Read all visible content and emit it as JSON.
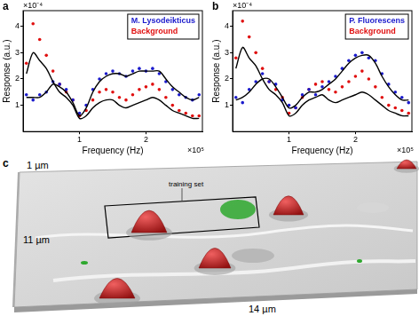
{
  "chart_data": [
    {
      "type": "scatter",
      "panel_label": "a",
      "x_label": "Frequency (Hz)",
      "y_label": "Response (a.u.)",
      "x_multiplier": "×10⁵",
      "y_multiplier": "×10⁻⁴",
      "x": [
        0.2,
        0.3,
        0.4,
        0.5,
        0.6,
        0.7,
        0.8,
        0.9,
        1.0,
        1.1,
        1.2,
        1.3,
        1.4,
        1.5,
        1.6,
        1.7,
        1.8,
        1.9,
        2.0,
        2.1,
        2.2,
        2.3,
        2.4,
        2.5,
        2.6,
        2.7,
        2.8
      ],
      "xlim": [
        0.15,
        2.85
      ],
      "xticks": [
        1,
        2
      ],
      "ylim": [
        0,
        4.6
      ],
      "yticks": [
        1,
        2,
        3,
        4
      ],
      "grid": false,
      "legend": "upper right",
      "series": [
        {
          "name": "M. Lysodeikticus",
          "color": "#1a1acc",
          "marker": "dot",
          "values": [
            1.4,
            1.2,
            1.4,
            1.5,
            1.9,
            1.8,
            1.6,
            1.2,
            0.7,
            1.0,
            1.6,
            2.0,
            2.2,
            2.3,
            2.2,
            2.1,
            2.3,
            2.4,
            2.3,
            2.4,
            2.2,
            1.9,
            1.6,
            1.4,
            1.3,
            1.2,
            1.4
          ]
        },
        {
          "name": "Background",
          "color": "#e01010",
          "marker": "dot",
          "values": [
            2.6,
            4.1,
            3.5,
            2.9,
            2.3,
            1.8,
            1.5,
            1.2,
            0.6,
            0.8,
            1.2,
            1.5,
            1.6,
            1.5,
            1.3,
            1.2,
            1.4,
            1.6,
            1.7,
            1.8,
            1.6,
            1.3,
            1.0,
            0.8,
            0.7,
            0.6,
            0.6
          ]
        },
        {
          "type": "line",
          "color": "#000000",
          "line_style": "solid",
          "values": [
            1.3,
            1.3,
            1.3,
            1.5,
            1.8,
            1.7,
            1.5,
            1.1,
            0.6,
            0.9,
            1.5,
            1.9,
            2.1,
            2.2,
            2.2,
            2.1,
            2.2,
            2.3,
            2.3,
            2.3,
            2.3,
            2.0,
            1.7,
            1.5,
            1.3,
            1.2,
            1.3
          ]
        },
        {
          "type": "line",
          "color": "#000000",
          "line_style": "solid",
          "values": [
            2.2,
            3.0,
            2.7,
            2.4,
            1.9,
            1.5,
            1.3,
            1.0,
            0.5,
            0.6,
            0.9,
            1.1,
            1.2,
            1.2,
            1.0,
            0.9,
            1.0,
            1.1,
            1.2,
            1.3,
            1.2,
            1.0,
            0.8,
            0.7,
            0.6,
            0.5,
            0.5
          ]
        }
      ]
    },
    {
      "type": "scatter",
      "panel_label": "b",
      "x_label": "Frequency (Hz)",
      "y_label": "Response (a.u.)",
      "x_multiplier": "×10⁵",
      "y_multiplier": "×10⁻⁴",
      "x": [
        0.2,
        0.3,
        0.4,
        0.5,
        0.6,
        0.7,
        0.8,
        0.9,
        1.0,
        1.1,
        1.2,
        1.3,
        1.4,
        1.5,
        1.6,
        1.7,
        1.8,
        1.9,
        2.0,
        2.1,
        2.2,
        2.3,
        2.4,
        2.5,
        2.6,
        2.7,
        2.8
      ],
      "xlim": [
        0.15,
        2.85
      ],
      "xticks": [
        1,
        2
      ],
      "ylim": [
        0,
        4.6
      ],
      "yticks": [
        1,
        2,
        3,
        4
      ],
      "grid": false,
      "legend": "upper right",
      "series": [
        {
          "name": "P. Fluorescens",
          "color": "#1a1acc",
          "marker": "dot",
          "values": [
            1.3,
            1.1,
            1.6,
            1.9,
            2.2,
            1.9,
            1.8,
            1.2,
            1.0,
            0.9,
            1.4,
            1.6,
            1.4,
            1.7,
            1.9,
            2.1,
            2.4,
            2.7,
            2.9,
            3.0,
            2.8,
            2.7,
            2.2,
            1.8,
            1.5,
            1.3,
            1.1
          ]
        },
        {
          "name": "Background",
          "color": "#e01010",
          "marker": "dot",
          "values": [
            2.8,
            4.2,
            3.6,
            3.0,
            2.4,
            1.9,
            1.6,
            1.3,
            0.7,
            0.9,
            1.3,
            1.6,
            1.8,
            1.9,
            1.6,
            1.5,
            1.7,
            1.9,
            2.1,
            2.3,
            2.0,
            1.7,
            1.3,
            1.0,
            0.9,
            0.8,
            0.7
          ]
        },
        {
          "type": "line",
          "color": "#000000",
          "line_style": "solid",
          "values": [
            1.2,
            1.3,
            1.5,
            1.8,
            2.0,
            2.0,
            1.7,
            1.3,
            0.9,
            1.0,
            1.3,
            1.5,
            1.5,
            1.6,
            1.8,
            2.0,
            2.3,
            2.6,
            2.8,
            2.9,
            2.9,
            2.6,
            2.1,
            1.7,
            1.4,
            1.2,
            1.2
          ]
        },
        {
          "type": "line",
          "color": "#000000",
          "line_style": "solid",
          "values": [
            2.4,
            3.2,
            2.8,
            2.5,
            2.0,
            1.6,
            1.4,
            1.1,
            0.6,
            0.7,
            1.0,
            1.2,
            1.3,
            1.4,
            1.2,
            1.1,
            1.2,
            1.3,
            1.4,
            1.5,
            1.4,
            1.2,
            1.0,
            0.8,
            0.7,
            0.6,
            0.6
          ]
        }
      ]
    }
  ],
  "panel_c": {
    "label": "c",
    "annotation": "training set",
    "axis_labels": {
      "top": "1 µm",
      "left": "11 µm",
      "bottom": "14 µm"
    }
  }
}
